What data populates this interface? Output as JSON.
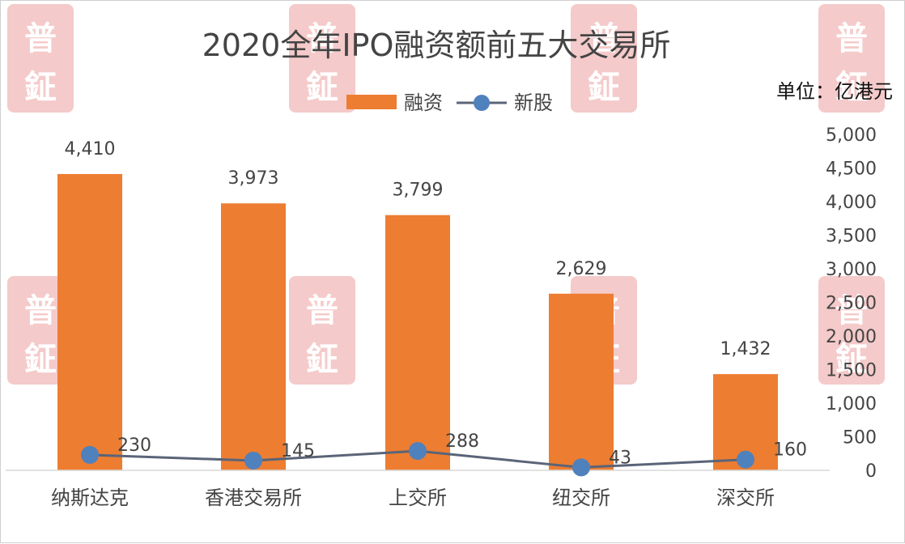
{
  "chart_data": {
    "type": "bar",
    "title": "2020全年IPO融资额前五大交易所",
    "unit_label": "单位：亿港元",
    "categories": [
      "纳斯达克",
      "香港交易所",
      "上交所",
      "纽交所",
      "深交所"
    ],
    "series": [
      {
        "name": "融资",
        "type": "bar",
        "axis": "right",
        "color": "#ED7D31",
        "values": [
          4410,
          3973,
          3799,
          2629,
          1432
        ],
        "labels": [
          "4,410",
          "3,973",
          "3,799",
          "2,629",
          "1,432"
        ]
      },
      {
        "name": "新股",
        "type": "line",
        "axis": "right",
        "color": "#4F81BD",
        "line_color": "#5A6478",
        "values": [
          230,
          145,
          288,
          43,
          160
        ],
        "labels": [
          "230",
          "145",
          "288",
          "43",
          "160"
        ]
      }
    ],
    "y_axis": {
      "position": "right",
      "range": [
        0,
        5000
      ],
      "ticks": [
        "0",
        "500",
        "1,000",
        "1,500",
        "2,000",
        "2,500",
        "3,000",
        "3,500",
        "4,000",
        "4,500",
        "5,000"
      ],
      "tick_values": [
        0,
        500,
        1000,
        1500,
        2000,
        2500,
        3000,
        3500,
        4000,
        4500,
        5000
      ]
    },
    "legend": {
      "placement": "top-center"
    },
    "grid": false
  },
  "watermark": {
    "lines": [
      "普",
      "鉦"
    ],
    "color": "#F2B8B8"
  }
}
